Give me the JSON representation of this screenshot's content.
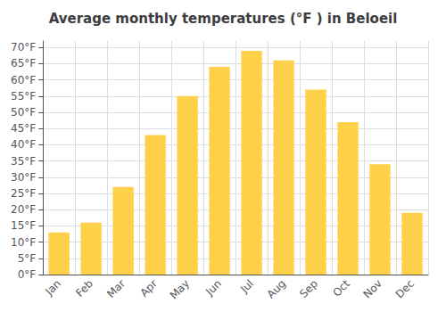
{
  "chart_data": {
    "type": "bar",
    "title": "Average monthly temperatures (°F ) in Beloeil",
    "categories": [
      "Jan",
      "Feb",
      "Mar",
      "Apr",
      "May",
      "Jun",
      "Jul",
      "Aug",
      "Sep",
      "Oct",
      "Nov",
      "Dec"
    ],
    "values": [
      13,
      16,
      27,
      43,
      55,
      64,
      69,
      66,
      57,
      47,
      34,
      19
    ],
    "color": "#FFD04A",
    "ylim": [
      0,
      72
    ],
    "yticks": [
      {
        "value": 0,
        "label": "0°F"
      },
      {
        "value": 5,
        "label": "5°F"
      },
      {
        "value": 10,
        "label": "10°F"
      },
      {
        "value": 15,
        "label": "15°F"
      },
      {
        "value": 20,
        "label": "20°F"
      },
      {
        "value": 25,
        "label": "25°F"
      },
      {
        "value": 30,
        "label": "30°F"
      },
      {
        "value": 35,
        "label": "35°F"
      },
      {
        "value": 40,
        "label": "40°F"
      },
      {
        "value": 45,
        "label": "45°F"
      },
      {
        "value": 50,
        "label": "50°F"
      },
      {
        "value": 55,
        "label": "55°F"
      },
      {
        "value": 60,
        "label": "60°F"
      },
      {
        "value": 65,
        "label": "65°F"
      },
      {
        "value": 70,
        "label": "70°F"
      }
    ],
    "grid": true
  }
}
